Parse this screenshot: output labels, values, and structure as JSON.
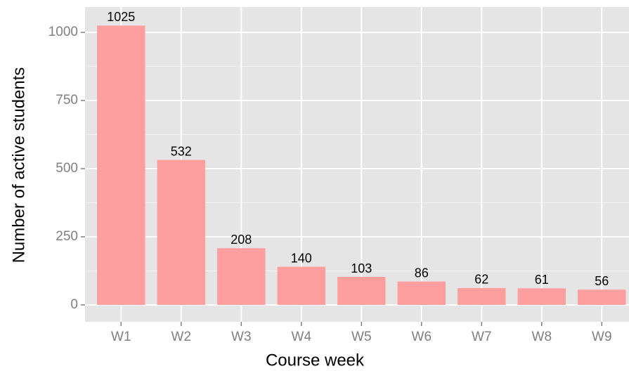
{
  "chart_data": {
    "type": "bar",
    "x_label": "Course week",
    "y_label": "Number of active students",
    "categories": [
      "W1",
      "W2",
      "W3",
      "W4",
      "W5",
      "W6",
      "W7",
      "W8",
      "W9"
    ],
    "values": [
      1025,
      532,
      208,
      140,
      103,
      86,
      62,
      61,
      56
    ],
    "color": "#ff9e9e",
    "ylim": [
      -62,
      1093
    ],
    "yticks": [
      0,
      250,
      500,
      750,
      1000
    ],
    "grid": true
  }
}
